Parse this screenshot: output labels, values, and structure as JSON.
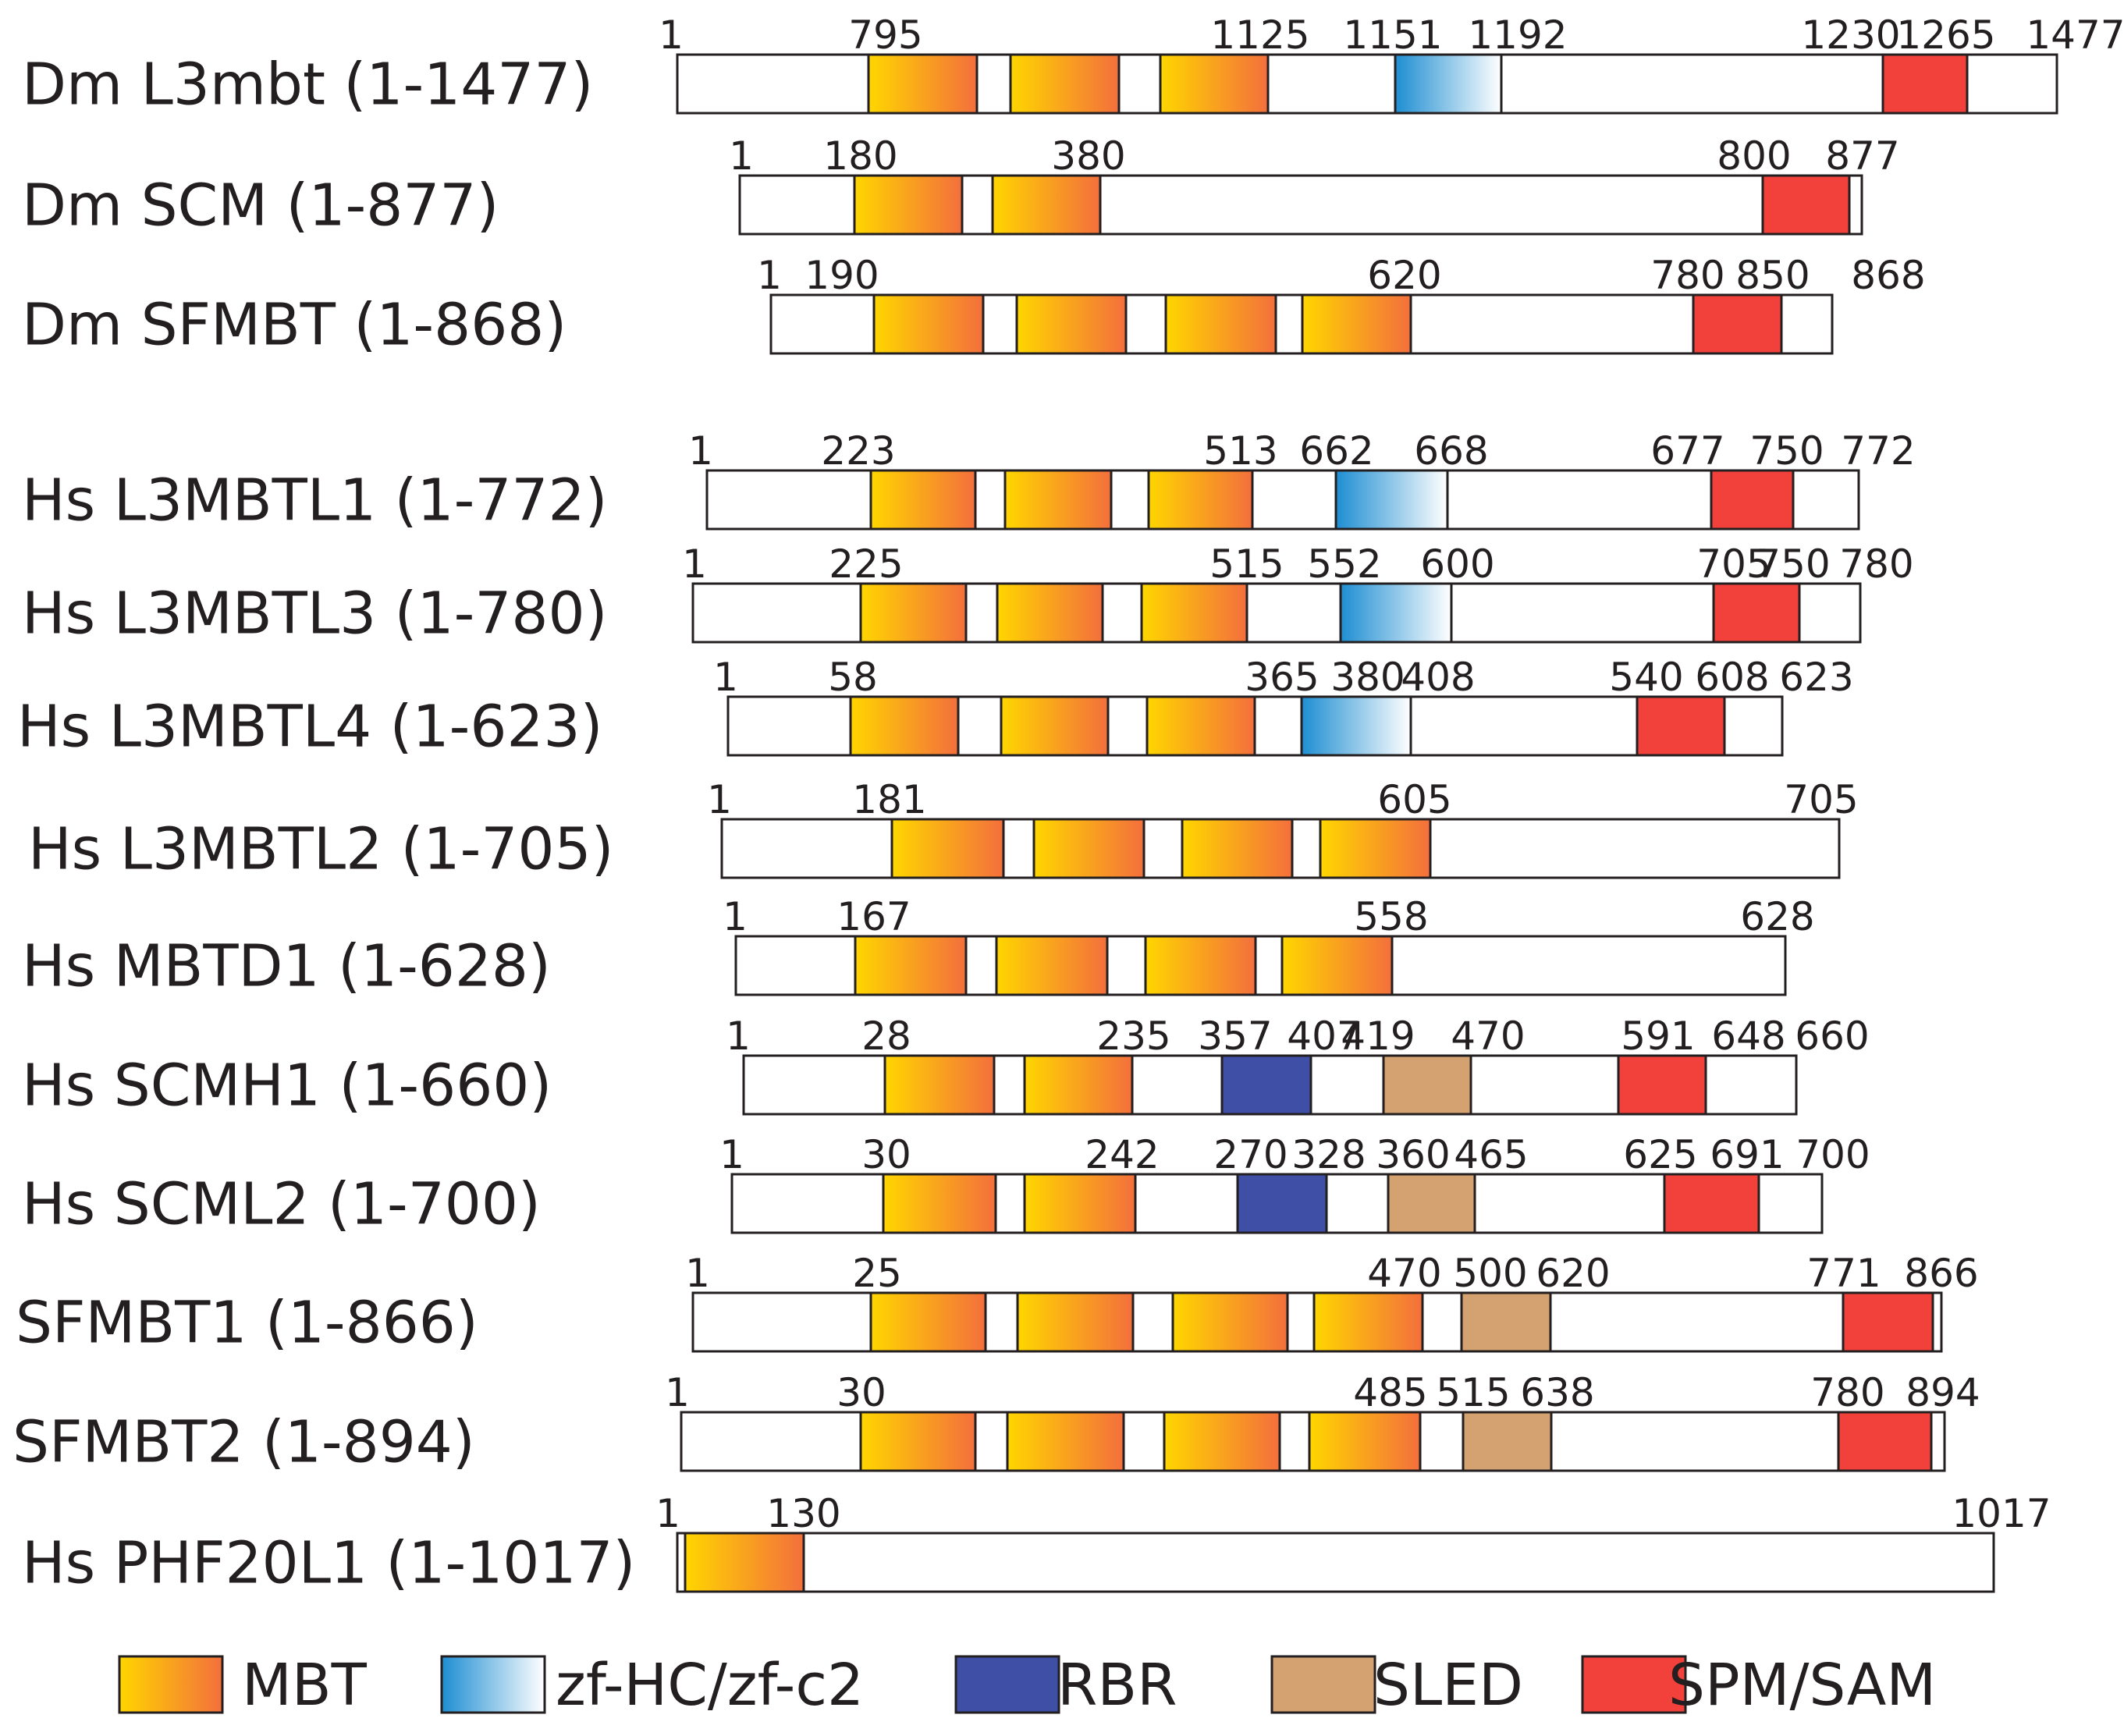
{
  "colors": {
    "MBT": [
      "#ffd600",
      "#f36f3c"
    ],
    "zf": [
      "#1e8ed2",
      "#ffffff"
    ],
    "RBR": "#3f4fa6",
    "SLED": "#d4a170",
    "SPM": "#f2413a",
    "outline": "#231f20",
    "bar_fill": "#ffffff"
  },
  "legend": [
    {
      "key": "MBT",
      "label": "MBT"
    },
    {
      "key": "zf",
      "label": "zf-HC/zf-c2"
    },
    {
      "key": "RBR",
      "label": "RBR"
    },
    {
      "key": "SLED",
      "label": "SLED"
    },
    {
      "key": "SPM",
      "label": "SPM/SAM"
    }
  ],
  "proteins": [
    {
      "name": "Dm L3mbt (1-1477)",
      "length": 1477,
      "numbers": [
        "1",
        "795",
        "1125",
        "1151",
        "1192",
        "1230",
        "1265",
        "1477"
      ],
      "domains": [
        "MBT",
        "MBT",
        "MBT",
        "zf",
        "SPM"
      ]
    },
    {
      "name": "Dm SCM (1-877)",
      "length": 877,
      "numbers": [
        "1",
        "180",
        "380",
        "800",
        "877"
      ],
      "domains": [
        "MBT",
        "MBT",
        "SPM"
      ]
    },
    {
      "name": "Dm SFMBT (1-868)",
      "length": 868,
      "numbers": [
        "1",
        "190",
        "620",
        "780",
        "850",
        "868"
      ],
      "domains": [
        "MBT",
        "MBT",
        "MBT",
        "MBT",
        "SPM"
      ]
    },
    {
      "name": "Hs L3MBTL1 (1-772)",
      "length": 772,
      "numbers": [
        "1",
        "223",
        "513",
        "662",
        "668",
        "677",
        "750",
        "772"
      ],
      "domains": [
        "MBT",
        "MBT",
        "MBT",
        "zf",
        "SPM"
      ]
    },
    {
      "name": "Hs L3MBTL3 (1-780)",
      "length": 780,
      "numbers": [
        "1",
        "225",
        "515",
        "552",
        "600",
        "705",
        "750",
        "780"
      ],
      "domains": [
        "MBT",
        "MBT",
        "MBT",
        "zf",
        "SPM"
      ]
    },
    {
      "name": "Hs L3MBTL4 (1-623)",
      "length": 623,
      "numbers": [
        "1",
        "58",
        "365",
        "380",
        "408",
        "540",
        "608",
        "623"
      ],
      "domains": [
        "MBT",
        "MBT",
        "MBT",
        "zf",
        "SPM"
      ]
    },
    {
      "name": "Hs L3MBTL2 (1-705)",
      "length": 705,
      "numbers": [
        "1",
        "181",
        "605",
        "705"
      ],
      "domains": [
        "MBT",
        "MBT",
        "MBT",
        "MBT"
      ]
    },
    {
      "name": "Hs MBTD1 (1-628)",
      "length": 628,
      "numbers": [
        "1",
        "167",
        "558",
        "628"
      ],
      "domains": [
        "MBT",
        "MBT",
        "MBT",
        "MBT"
      ]
    },
    {
      "name": "Hs SCMH1 (1-660)",
      "length": 660,
      "numbers": [
        "1",
        "28",
        "235",
        "357",
        "407",
        "419",
        "470",
        "591",
        "648",
        "660"
      ],
      "domains": [
        "MBT",
        "MBT",
        "RBR",
        "SLED",
        "SPM"
      ]
    },
    {
      "name": "Hs SCML2 (1-700)",
      "length": 700,
      "numbers": [
        "1",
        "30",
        "242",
        "270",
        "328",
        "360",
        "465",
        "625",
        "691",
        "700"
      ],
      "domains": [
        "MBT",
        "MBT",
        "RBR",
        "SLED",
        "SPM"
      ]
    },
    {
      "name": "SFMBT1 (1-866)",
      "length": 866,
      "numbers": [
        "1",
        "25",
        "470",
        "500",
        "620",
        "771",
        "866"
      ],
      "domains": [
        "MBT",
        "MBT",
        "MBT",
        "MBT",
        "SLED",
        "SPM"
      ]
    },
    {
      "name": "SFMBT2 (1-894)",
      "length": 894,
      "numbers": [
        "1",
        "30",
        "485",
        "515",
        "638",
        "780",
        "894"
      ],
      "domains": [
        "MBT",
        "MBT",
        "MBT",
        "MBT",
        "SLED",
        "SPM"
      ]
    },
    {
      "name": "Hs PHF20L1 (1-1017)",
      "length": 1017,
      "numbers": [
        "1",
        "130",
        "1017"
      ],
      "domains": [
        "MBT"
      ]
    }
  ]
}
